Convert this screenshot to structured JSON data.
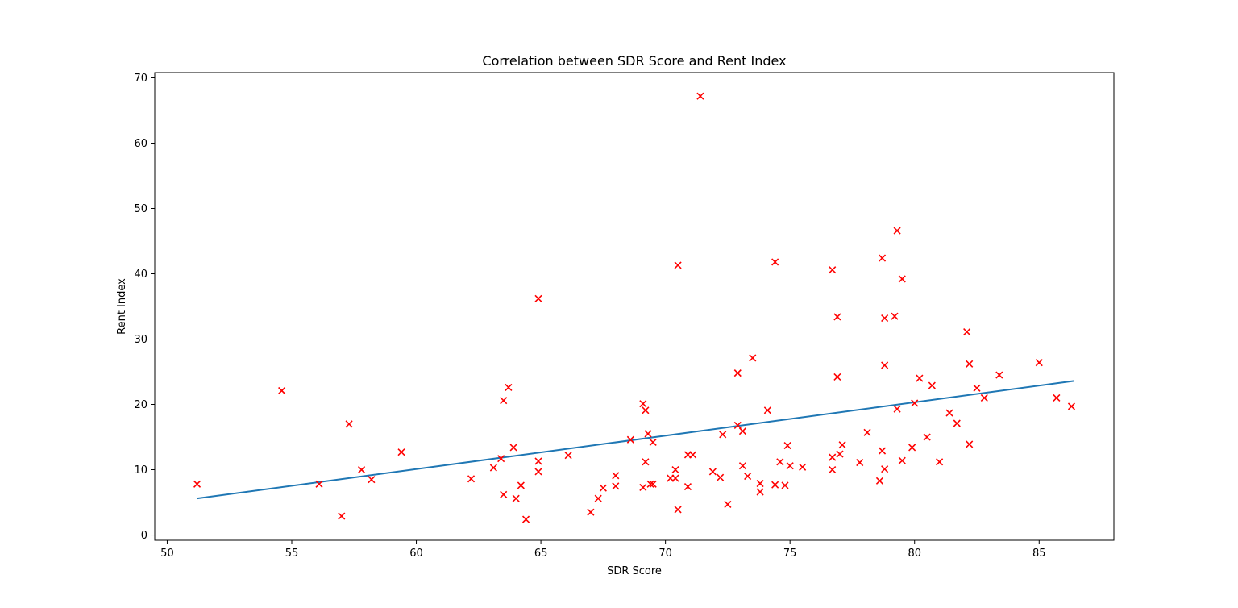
{
  "chart_data": {
    "type": "scatter",
    "title": "Correlation between SDR Score and Rent Index",
    "xlabel": "SDR Score",
    "ylabel": "Rent Index",
    "xlim": [
      49.5,
      88.0
    ],
    "ylim": [
      -0.8,
      70.8
    ],
    "xticks": [
      50,
      55,
      60,
      65,
      70,
      75,
      80,
      85
    ],
    "yticks": [
      0,
      10,
      20,
      30,
      40,
      50,
      60,
      70
    ],
    "grid": false,
    "legend": "none",
    "marker": "x",
    "colors": {
      "points": "#ff0000",
      "trendline": "#1f77b4"
    },
    "trendline": {
      "x": [
        51.2,
        86.4
      ],
      "y": [
        5.6,
        23.6
      ]
    },
    "points": [
      [
        51.2,
        7.8
      ],
      [
        54.6,
        22.1
      ],
      [
        56.1,
        7.8
      ],
      [
        57.0,
        2.9
      ],
      [
        57.3,
        17.0
      ],
      [
        57.8,
        10.0
      ],
      [
        58.2,
        8.5
      ],
      [
        59.4,
        12.7
      ],
      [
        62.2,
        8.6
      ],
      [
        63.1,
        10.3
      ],
      [
        63.4,
        11.7
      ],
      [
        63.5,
        6.2
      ],
      [
        63.5,
        20.6
      ],
      [
        63.7,
        22.6
      ],
      [
        63.9,
        13.4
      ],
      [
        64.0,
        5.6
      ],
      [
        64.2,
        7.6
      ],
      [
        64.4,
        2.4
      ],
      [
        64.9,
        36.2
      ],
      [
        64.9,
        11.3
      ],
      [
        64.9,
        9.7
      ],
      [
        66.1,
        12.2
      ],
      [
        67.0,
        3.5
      ],
      [
        67.3,
        5.6
      ],
      [
        67.5,
        7.2
      ],
      [
        68.0,
        9.1
      ],
      [
        68.0,
        7.5
      ],
      [
        68.6,
        14.6
      ],
      [
        69.1,
        20.1
      ],
      [
        69.1,
        7.3
      ],
      [
        69.2,
        19.1
      ],
      [
        69.2,
        11.2
      ],
      [
        69.3,
        15.5
      ],
      [
        69.4,
        7.8
      ],
      [
        69.5,
        7.8
      ],
      [
        69.5,
        14.2
      ],
      [
        70.2,
        8.7
      ],
      [
        70.4,
        8.7
      ],
      [
        70.4,
        10.0
      ],
      [
        70.5,
        3.9
      ],
      [
        70.5,
        41.3
      ],
      [
        70.9,
        7.4
      ],
      [
        70.9,
        12.3
      ],
      [
        71.1,
        12.3
      ],
      [
        71.4,
        67.2
      ],
      [
        71.9,
        9.7
      ],
      [
        72.2,
        8.8
      ],
      [
        72.3,
        15.4
      ],
      [
        72.5,
        4.7
      ],
      [
        72.9,
        24.8
      ],
      [
        72.9,
        16.8
      ],
      [
        73.1,
        15.9
      ],
      [
        73.1,
        10.6
      ],
      [
        73.3,
        9.0
      ],
      [
        73.5,
        27.1
      ],
      [
        73.8,
        6.6
      ],
      [
        73.8,
        7.9
      ],
      [
        74.1,
        19.1
      ],
      [
        74.4,
        7.7
      ],
      [
        74.4,
        41.8
      ],
      [
        74.6,
        11.2
      ],
      [
        74.8,
        7.6
      ],
      [
        74.9,
        13.7
      ],
      [
        75.0,
        10.6
      ],
      [
        75.5,
        10.4
      ],
      [
        76.7,
        40.6
      ],
      [
        76.7,
        10.0
      ],
      [
        76.7,
        11.9
      ],
      [
        76.9,
        33.4
      ],
      [
        76.9,
        24.2
      ],
      [
        77.0,
        12.4
      ],
      [
        77.1,
        13.8
      ],
      [
        77.8,
        11.1
      ],
      [
        78.1,
        15.7
      ],
      [
        78.6,
        8.3
      ],
      [
        78.7,
        42.4
      ],
      [
        78.7,
        12.9
      ],
      [
        78.8,
        26.0
      ],
      [
        78.8,
        33.2
      ],
      [
        78.8,
        10.1
      ],
      [
        79.2,
        33.5
      ],
      [
        79.3,
        46.6
      ],
      [
        79.3,
        19.3
      ],
      [
        79.5,
        39.2
      ],
      [
        79.5,
        11.4
      ],
      [
        79.9,
        13.4
      ],
      [
        80.0,
        20.2
      ],
      [
        80.2,
        24.0
      ],
      [
        80.5,
        15.0
      ],
      [
        80.7,
        22.9
      ],
      [
        81.0,
        11.2
      ],
      [
        81.4,
        18.7
      ],
      [
        81.7,
        17.1
      ],
      [
        82.1,
        31.1
      ],
      [
        82.2,
        26.2
      ],
      [
        82.2,
        13.9
      ],
      [
        82.5,
        22.5
      ],
      [
        82.8,
        21.0
      ],
      [
        83.4,
        24.5
      ],
      [
        85.0,
        26.4
      ],
      [
        85.7,
        21.0
      ],
      [
        86.3,
        19.7
      ]
    ]
  }
}
